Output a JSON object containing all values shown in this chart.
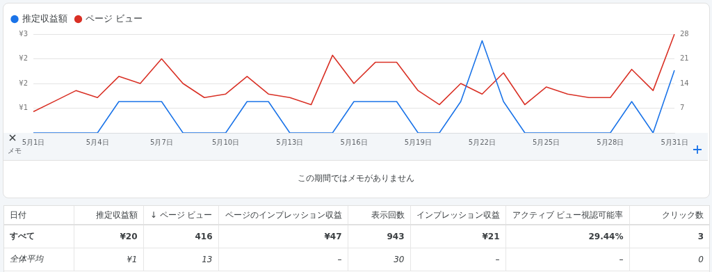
{
  "chart_data": [
    {
      "type": "line",
      "legend": "top left",
      "grid": "y",
      "marker": "none",
      "line_style": "solid",
      "categories": [
        "5月1日",
        null,
        null,
        "5月4日",
        null,
        null,
        "5月7日",
        null,
        null,
        "5月10日",
        null,
        null,
        "5月13日",
        null,
        null,
        "5月16日",
        null,
        null,
        "5月19日",
        null,
        null,
        "5月22日",
        null,
        null,
        "5月25日",
        null,
        null,
        "5月28日",
        null,
        null,
        "5月31日"
      ],
      "series": [
        {
          "name": "推定収益額",
          "color": "#1a73e8",
          "values": [
            0,
            0,
            0,
            0,
            0.95,
            0.95,
            0.95,
            0,
            0,
            0,
            0.95,
            0.95,
            0,
            0,
            0,
            0.95,
            0.95,
            0.95,
            0,
            0,
            0.95,
            2.8,
            0.95,
            0,
            0,
            0,
            0,
            0,
            0.95,
            0,
            1.9
          ]
        },
        {
          "name": "ページ ビュー",
          "color": "#d93025",
          "axis": "y2",
          "values": [
            6,
            9,
            12,
            10,
            16,
            14,
            21,
            14,
            10,
            11,
            16,
            11,
            10,
            8,
            22,
            14,
            20,
            20,
            12,
            8,
            14,
            11,
            17,
            8,
            13,
            11,
            10,
            10,
            18,
            12,
            28
          ]
        }
      ],
      "ylim": [
        0,
        3
      ],
      "yticks": [
        {
          "value": 0.75,
          "label": "¥1"
        },
        {
          "value": 1.5,
          "label": "¥2"
        },
        {
          "value": 2.25,
          "label": "¥2"
        },
        {
          "value": 3,
          "label": "¥3"
        }
      ],
      "y2lim": [
        0,
        28
      ],
      "y2ticks": [
        7,
        14,
        21,
        28
      ]
    },
    {
      "type": "other",
      "title": "メモ",
      "annotations": [
        "この期間ではメモがありません"
      ]
    },
    {
      "type": "other",
      "categories": [
        "日付",
        "推定収益額",
        "↓ ページ ビュー",
        "ページのインプレッション収益",
        "表示回数",
        "インプレッション収益",
        "アクティブ ビュー視認可能率",
        "クリック数"
      ],
      "annotations": [
        "すべて",
        "¥20",
        "416",
        "¥47",
        "943",
        "¥21",
        "29.44%",
        "3",
        "全体平均",
        "¥1",
        "13",
        "–",
        "30",
        "–",
        "–",
        "0"
      ]
    }
  ]
}
